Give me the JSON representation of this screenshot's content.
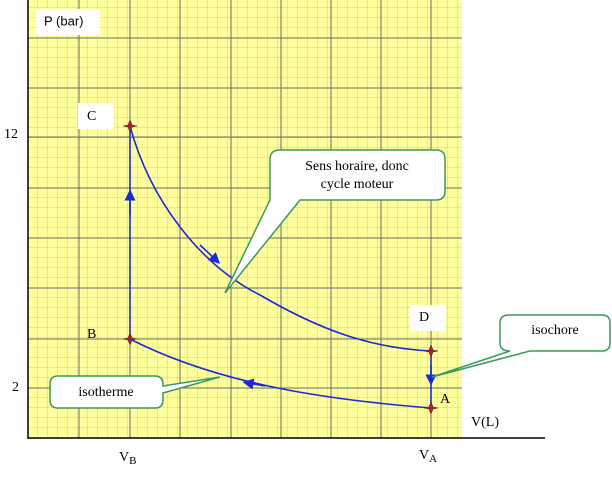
{
  "axes": {
    "y_label": "P (bar)",
    "x_label": "V(L)",
    "y_ticks": [
      "12",
      "2"
    ],
    "x_ticks": [
      {
        "main": "V",
        "sub": "B"
      },
      {
        "main": "V",
        "sub": "A"
      }
    ]
  },
  "points": {
    "C": "C",
    "B": "B",
    "D": "D",
    "A": "A"
  },
  "callouts": {
    "cycle": [
      "Sens horaire, donc",
      "cycle moteur"
    ],
    "isochore": "isochore",
    "isotherme": "isotherme"
  }
}
